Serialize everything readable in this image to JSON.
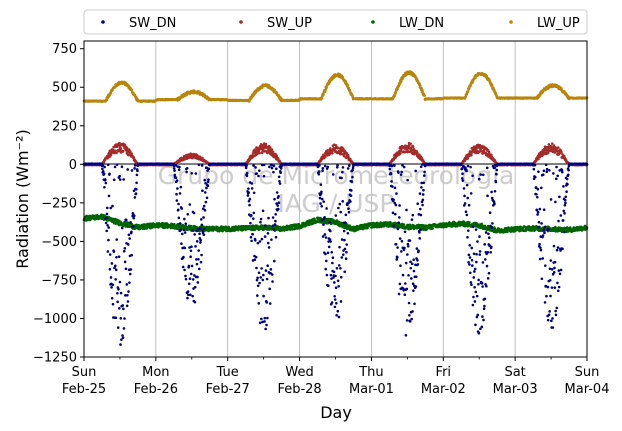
{
  "chart_data": {
    "type": "scatter",
    "title": "",
    "xlabel": "Day",
    "ylabel": "Radiation (Wm⁻²)",
    "ylim": [
      -1250,
      800
    ],
    "xlim": [
      0,
      7
    ],
    "grid": "vertical",
    "legend_position": "top-outside",
    "yticks": [
      -1250,
      -1000,
      -750,
      -500,
      -250,
      0,
      250,
      500,
      750
    ],
    "ytick_labels": [
      "−1250",
      "−1000",
      "−750",
      "−500",
      "−250",
      "0",
      "250",
      "500",
      "750"
    ],
    "xticks": [
      {
        "day": 0,
        "line1": "Sun",
        "line2": "Feb-25"
      },
      {
        "day": 1,
        "line1": "Mon",
        "line2": "Feb-26"
      },
      {
        "day": 2,
        "line1": "Tue",
        "line2": "Feb-27"
      },
      {
        "day": 3,
        "line1": "Wed",
        "line2": "Feb-28"
      },
      {
        "day": 4,
        "line1": "Thu",
        "line2": "Mar-01"
      },
      {
        "day": 5,
        "line1": "Fri",
        "line2": "Mar-02"
      },
      {
        "day": 6,
        "line1": "Sat",
        "line2": "Mar-03"
      },
      {
        "day": 7,
        "line1": "Sun",
        "line2": "Mar-04"
      }
    ],
    "watermark": [
      "Grupo de Micrometeorologia",
      "IAG / USP"
    ],
    "series": [
      {
        "name": "SW_DN",
        "color": "#000080",
        "daily_min": [
          -1200,
          -940,
          -1090,
          -1040,
          -1130,
          -1100,
          -1090
        ],
        "daily_sample_min": [
          -1200,
          -1100,
          -950,
          -920,
          -800,
          -700,
          -650,
          -600,
          -550,
          -450,
          -400,
          -350,
          -300,
          -250,
          -200,
          -150,
          -100,
          -50,
          -20
        ]
      },
      {
        "name": "SW_UP",
        "color": "#a52a2a",
        "daily_peak": [
          140,
          70,
          135,
          130,
          140,
          130,
          135
        ]
      },
      {
        "name": "LW_DN",
        "color": "#006400",
        "x": [
          0,
          0.25,
          0.5,
          0.75,
          1,
          1.25,
          1.5,
          1.75,
          2,
          2.25,
          2.5,
          2.75,
          3,
          3.25,
          3.5,
          3.75,
          4,
          4.25,
          4.5,
          4.75,
          5,
          5.25,
          5.5,
          5.75,
          6,
          6.25,
          6.5,
          6.75,
          7
        ],
        "y": [
          -350,
          -340,
          -380,
          -410,
          -395,
          -400,
          -415,
          -420,
          -418,
          -415,
          -410,
          -420,
          -400,
          -360,
          -375,
          -420,
          -395,
          -390,
          -405,
          -410,
          -395,
          -385,
          -395,
          -430,
          -420,
          -415,
          -420,
          -425,
          -410
        ]
      },
      {
        "name": "LW_UP",
        "color": "#b8860b",
        "daily_base": [
          410,
          420,
          415,
          425,
          425,
          430,
          430
        ],
        "daily_peak": [
          530,
          470,
          510,
          580,
          595,
          590,
          510
        ]
      }
    ]
  }
}
